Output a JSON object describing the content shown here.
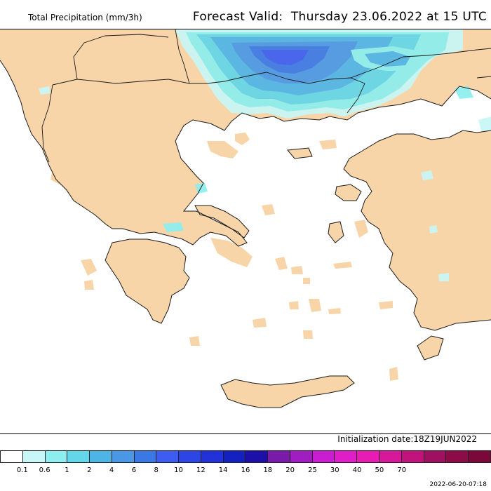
{
  "header": {
    "title": "Total Precipitation (mm/3h)",
    "forecast_label": "Forecast Valid:",
    "forecast_time": "Thursday 23.06.2022 at 15 UTC"
  },
  "footer": {
    "init_label": "Initialization date:",
    "init_value": "18Z19JUN2022",
    "timestamp": "2022-06-20-07:18"
  },
  "colors": {
    "land": "#f8d5a8",
    "sea": "#ffffff",
    "coast": "#1a1a1a"
  },
  "legend": {
    "colors": [
      "#ffffff",
      "#c8f7f7",
      "#8ceeee",
      "#63d7e9",
      "#4eb4e6",
      "#4a97e6",
      "#3a78e6",
      "#3c5df0",
      "#2e45e6",
      "#2032d8",
      "#1420c0",
      "#1c10a8",
      "#7a1aa8",
      "#a01ec0",
      "#c81ed0",
      "#e01ec8",
      "#e81cb4",
      "#d8189a",
      "#c0147c",
      "#a01060",
      "#8c0c48",
      "#7a0838"
    ],
    "labels": [
      "0.1",
      "0.6",
      "1",
      "2",
      "4",
      "6",
      "8",
      "10",
      "12",
      "14",
      "16",
      "18",
      "20",
      "25",
      "30",
      "40",
      "50",
      "70"
    ]
  }
}
